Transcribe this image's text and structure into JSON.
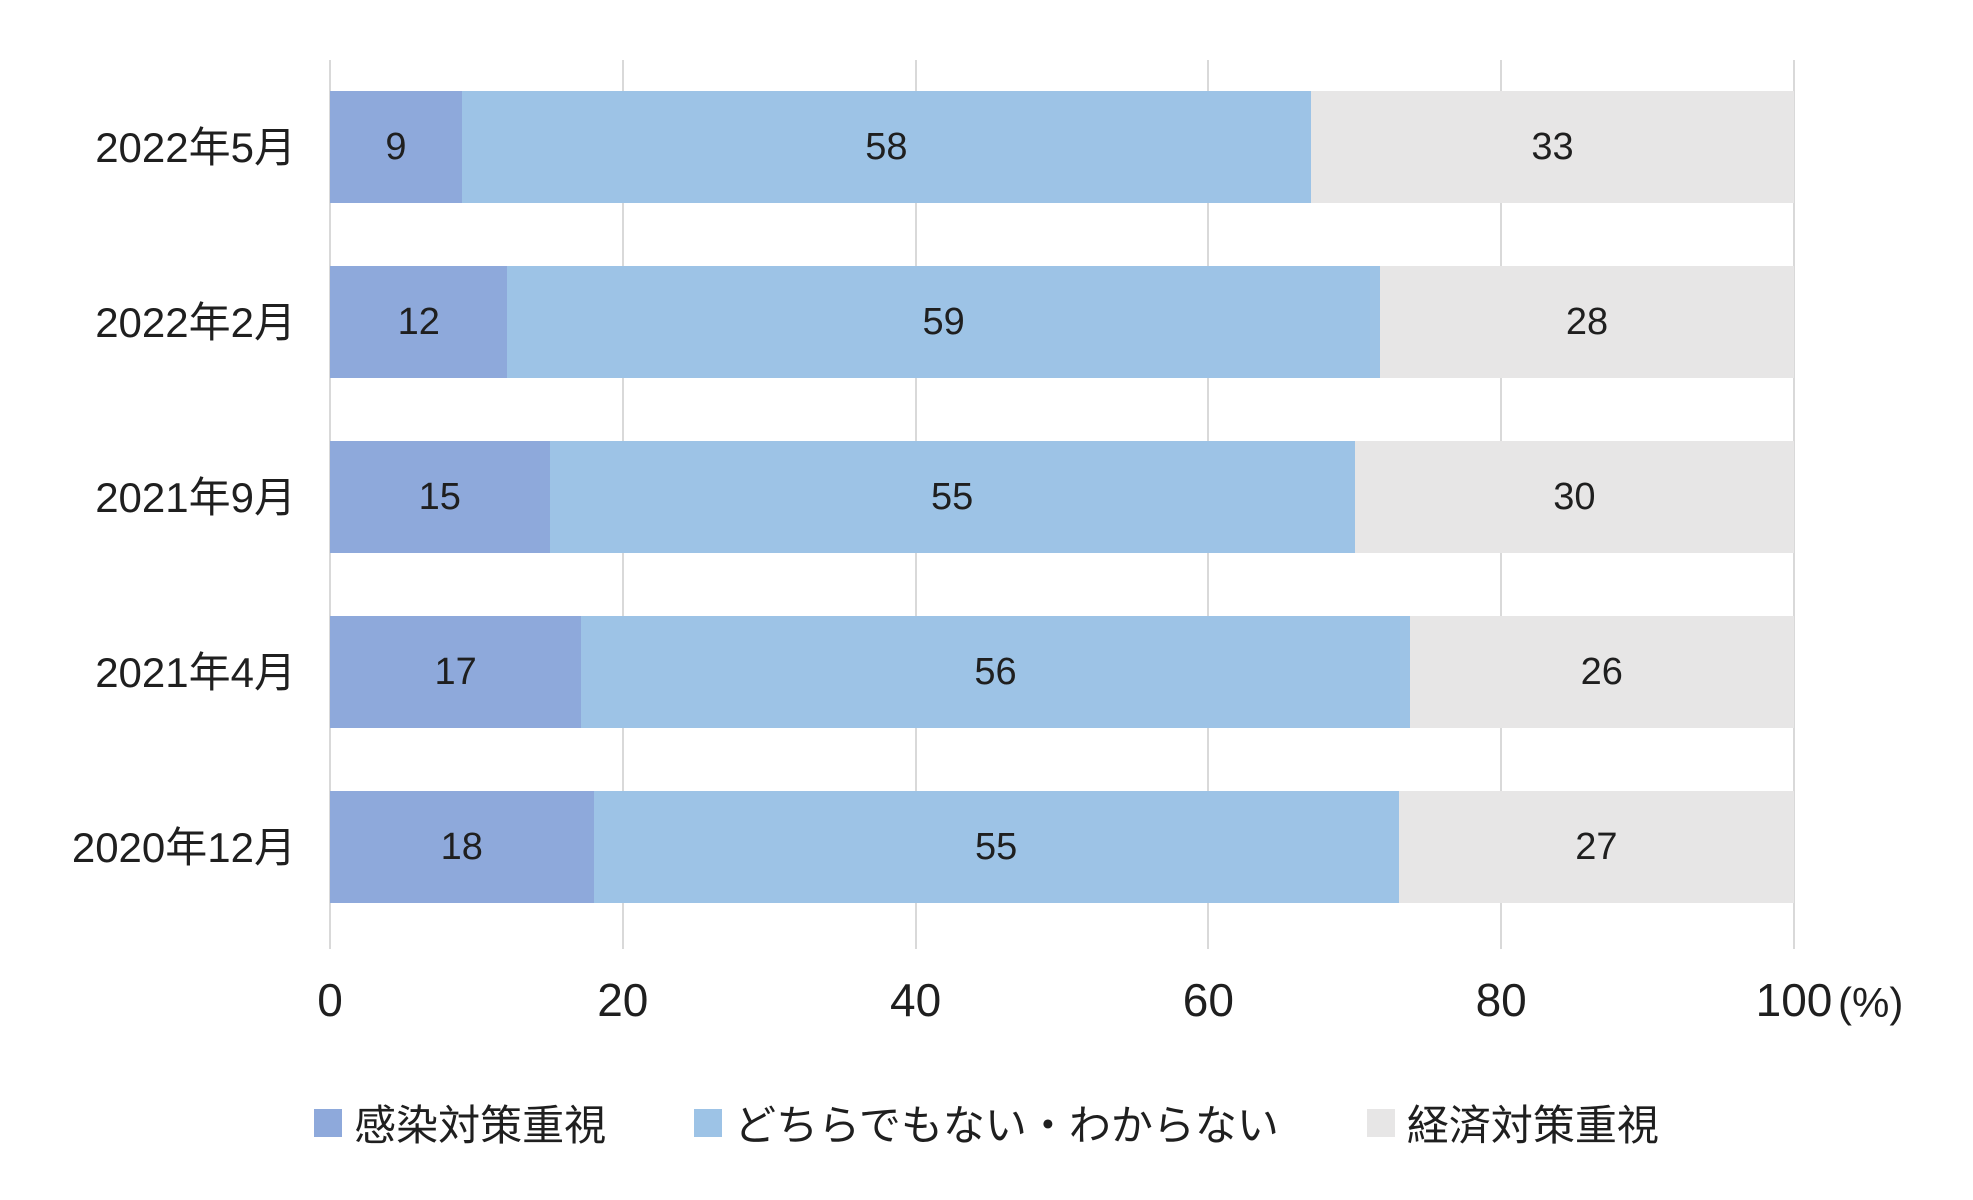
{
  "chart_data": {
    "type": "bar",
    "variant": "horizontal-100pct-stacked",
    "title": "",
    "categories": [
      "2022年5月",
      "2022年2月",
      "2021年9月",
      "2021年4月",
      "2020年12月"
    ],
    "series": [
      {
        "name": "感染対策重視",
        "color": "#8EA9DB",
        "values": [
          9,
          12,
          15,
          17,
          18
        ]
      },
      {
        "name": "どちらでもない・わからない",
        "color": "#9DC3E6",
        "values": [
          58,
          59,
          55,
          56,
          55
        ]
      },
      {
        "name": "経済対策重視",
        "color": "#E7E6E6",
        "values": [
          33,
          28,
          30,
          26,
          27
        ]
      }
    ],
    "xlim": [
      0,
      100
    ],
    "x_ticks": [
      0,
      20,
      40,
      60,
      80,
      100
    ],
    "x_unit": "(%)",
    "grid": true,
    "legend_position": "bottom"
  },
  "colors": {
    "gridline": "#D9D9D9",
    "text": "#1f1f1f",
    "background": "#ffffff"
  }
}
